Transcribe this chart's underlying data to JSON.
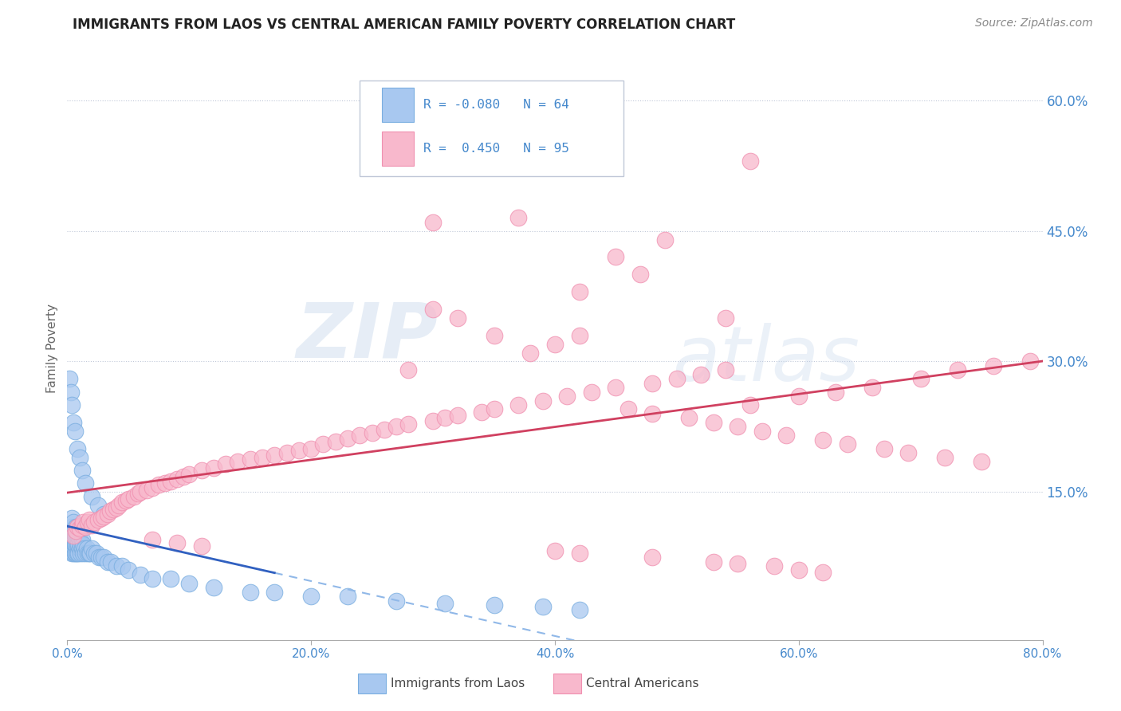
{
  "title": "IMMIGRANTS FROM LAOS VS CENTRAL AMERICAN FAMILY POVERTY CORRELATION CHART",
  "source": "Source: ZipAtlas.com",
  "ylabel": "Family Poverty",
  "legend_labels": [
    "Immigrants from Laos",
    "Central Americans"
  ],
  "legend_r": [
    -0.08,
    0.45
  ],
  "legend_n": [
    64,
    95
  ],
  "xlim": [
    0.0,
    0.8
  ],
  "ylim": [
    -0.02,
    0.65
  ],
  "yticks": [
    0.15,
    0.3,
    0.45,
    0.6
  ],
  "ytick_labels": [
    "15.0%",
    "30.0%",
    "45.0%",
    "60.0%"
  ],
  "xticks": [
    0.0,
    0.2,
    0.4,
    0.6,
    0.8
  ],
  "xtick_labels": [
    "0.0%",
    "20.0%",
    "40.0%",
    "60.0%",
    "80.0%"
  ],
  "watermark_zip": "ZIP",
  "watermark_atlas": "atlas",
  "blue_fill": "#A8C8F0",
  "blue_edge": "#7AAEE0",
  "pink_fill": "#F8B8CC",
  "pink_edge": "#F090B0",
  "trend_blue_solid": "#3060C0",
  "trend_blue_dash": "#90B8E8",
  "trend_pink": "#D04060",
  "title_color": "#222222",
  "ylabel_color": "#666666",
  "tick_color": "#4488CC",
  "grid_color": "#C0C8D8",
  "legend_box_edge": "#C0C8D8",
  "source_color": "#888888",
  "blue_x": [
    0.002,
    0.003,
    0.003,
    0.004,
    0.004,
    0.004,
    0.005,
    0.005,
    0.005,
    0.005,
    0.006,
    0.006,
    0.006,
    0.007,
    0.007,
    0.007,
    0.007,
    0.008,
    0.008,
    0.008,
    0.008,
    0.009,
    0.009,
    0.009,
    0.01,
    0.01,
    0.01,
    0.011,
    0.011,
    0.012,
    0.012,
    0.013,
    0.013,
    0.014,
    0.015,
    0.016,
    0.017,
    0.018,
    0.019,
    0.02,
    0.022,
    0.024,
    0.026,
    0.028,
    0.03,
    0.033,
    0.036,
    0.04,
    0.045,
    0.05,
    0.06,
    0.07,
    0.085,
    0.1,
    0.12,
    0.15,
    0.17,
    0.2,
    0.23,
    0.27,
    0.31,
    0.35,
    0.39,
    0.42
  ],
  "blue_y": [
    0.09,
    0.1,
    0.11,
    0.08,
    0.09,
    0.12,
    0.08,
    0.095,
    0.105,
    0.115,
    0.08,
    0.09,
    0.1,
    0.08,
    0.09,
    0.1,
    0.11,
    0.08,
    0.09,
    0.1,
    0.11,
    0.08,
    0.09,
    0.1,
    0.085,
    0.095,
    0.105,
    0.08,
    0.09,
    0.085,
    0.095,
    0.08,
    0.09,
    0.085,
    0.08,
    0.085,
    0.08,
    0.08,
    0.08,
    0.085,
    0.08,
    0.08,
    0.075,
    0.075,
    0.075,
    0.07,
    0.07,
    0.065,
    0.065,
    0.06,
    0.055,
    0.05,
    0.05,
    0.045,
    0.04,
    0.035,
    0.035,
    0.03,
    0.03,
    0.025,
    0.022,
    0.02,
    0.018,
    0.015
  ],
  "blue_high_x": [
    0.002,
    0.003,
    0.004,
    0.005,
    0.006,
    0.008,
    0.01,
    0.012,
    0.015,
    0.02,
    0.025,
    0.03
  ],
  "blue_high_y": [
    0.28,
    0.265,
    0.25,
    0.23,
    0.22,
    0.2,
    0.19,
    0.175,
    0.16,
    0.145,
    0.135,
    0.125
  ],
  "pink_x": [
    0.005,
    0.007,
    0.008,
    0.01,
    0.012,
    0.013,
    0.015,
    0.017,
    0.018,
    0.02,
    0.022,
    0.025,
    0.028,
    0.03,
    0.033,
    0.035,
    0.038,
    0.04,
    0.042,
    0.045,
    0.048,
    0.05,
    0.055,
    0.058,
    0.06,
    0.065,
    0.07,
    0.075,
    0.08,
    0.085,
    0.09,
    0.095,
    0.1,
    0.11,
    0.12,
    0.13,
    0.14,
    0.15,
    0.16,
    0.17,
    0.18,
    0.19,
    0.2,
    0.21,
    0.22,
    0.23,
    0.24,
    0.25,
    0.26,
    0.27,
    0.28,
    0.3,
    0.31,
    0.32,
    0.34,
    0.35,
    0.37,
    0.39,
    0.41,
    0.43,
    0.45,
    0.48,
    0.5,
    0.52,
    0.54,
    0.56,
    0.6,
    0.63,
    0.66,
    0.7,
    0.73,
    0.76,
    0.79,
    0.3,
    0.42,
    0.45,
    0.32,
    0.28,
    0.35,
    0.38,
    0.4,
    0.42,
    0.46,
    0.48,
    0.51,
    0.53,
    0.55,
    0.57,
    0.59,
    0.62,
    0.64,
    0.67,
    0.69,
    0.72,
    0.75
  ],
  "pink_y": [
    0.1,
    0.105,
    0.11,
    0.108,
    0.112,
    0.115,
    0.11,
    0.115,
    0.118,
    0.112,
    0.115,
    0.118,
    0.12,
    0.122,
    0.125,
    0.128,
    0.13,
    0.132,
    0.135,
    0.138,
    0.14,
    0.142,
    0.145,
    0.148,
    0.15,
    0.152,
    0.155,
    0.158,
    0.16,
    0.162,
    0.165,
    0.168,
    0.17,
    0.175,
    0.178,
    0.182,
    0.185,
    0.188,
    0.19,
    0.192,
    0.195,
    0.198,
    0.2,
    0.205,
    0.208,
    0.212,
    0.215,
    0.218,
    0.222,
    0.225,
    0.228,
    0.232,
    0.235,
    0.238,
    0.242,
    0.245,
    0.25,
    0.255,
    0.26,
    0.265,
    0.27,
    0.275,
    0.28,
    0.285,
    0.29,
    0.25,
    0.26,
    0.265,
    0.27,
    0.28,
    0.29,
    0.295,
    0.3,
    0.46,
    0.38,
    0.42,
    0.35,
    0.29,
    0.33,
    0.31,
    0.32,
    0.33,
    0.245,
    0.24,
    0.235,
    0.23,
    0.225,
    0.22,
    0.215,
    0.21,
    0.205,
    0.2,
    0.195,
    0.19,
    0.185
  ],
  "pink_outlier_x": [
    0.37,
    0.49,
    0.47,
    0.56,
    0.3,
    0.54
  ],
  "pink_outlier_y": [
    0.465,
    0.44,
    0.4,
    0.53,
    0.36,
    0.35
  ],
  "pink_low_x": [
    0.42,
    0.48,
    0.53,
    0.55,
    0.58,
    0.4,
    0.6,
    0.62,
    0.07,
    0.09,
    0.11
  ],
  "pink_low_y": [
    0.08,
    0.075,
    0.07,
    0.068,
    0.065,
    0.082,
    0.06,
    0.058,
    0.095,
    0.092,
    0.088
  ]
}
